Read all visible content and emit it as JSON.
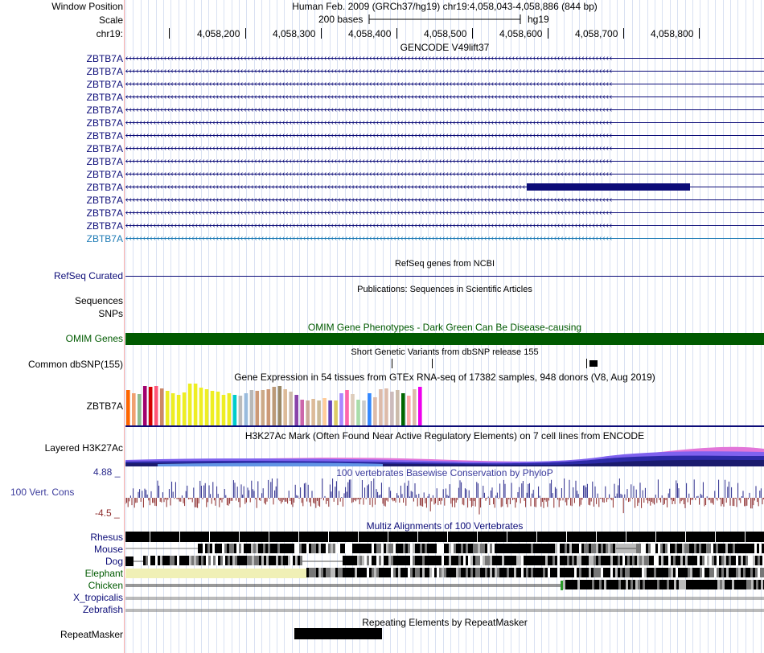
{
  "header": {
    "window_position_label": "Window Position",
    "scale_label": "Scale",
    "chrom_label": "chr19:",
    "assembly": "Human Feb. 2009 (GRCh37/hg19)   chr19:4,058,043-4,058,886 (844 bp)",
    "scale_text": "200 bases",
    "db": "hg19",
    "ruler_ticks": [
      "4,058,200",
      "4,058,300",
      "4,058,400",
      "4,058,500",
      "4,058,600",
      "4,058,700",
      "4,058,800"
    ]
  },
  "gencode": {
    "title": "GENCODE V49lift37",
    "rows": [
      {
        "label": "ZBTB7A"
      },
      {
        "label": "ZBTB7A"
      },
      {
        "label": "ZBTB7A"
      },
      {
        "label": "ZBTB7A"
      },
      {
        "label": "ZBTB7A"
      },
      {
        "label": "ZBTB7A"
      },
      {
        "label": "ZBTB7A"
      },
      {
        "label": "ZBTB7A"
      },
      {
        "label": "ZBTB7A"
      },
      {
        "label": "ZBTB7A"
      },
      {
        "label": "ZBTB7A"
      },
      {
        "label": "ZBTB7A"
      },
      {
        "label": "ZBTB7A"
      },
      {
        "label": "ZBTB7A"
      },
      {
        "label": "ZBTB7A"
      }
    ],
    "row_with_exon": 10,
    "colors": {
      "gene": "#0c0c78",
      "last_gene": "#1c7ab5"
    }
  },
  "refseq": {
    "title": "RefSeq genes from NCBI",
    "label": "RefSeq Curated",
    "color": "#0c0c78"
  },
  "publications": {
    "title": "Publications: Sequences in Scientific Articles",
    "labels": [
      "Sequences",
      "SNPs"
    ]
  },
  "omim": {
    "title": "OMIM Gene Phenotypes - Dark Green Can Be Disease-causing",
    "label": "OMIM Genes",
    "color": "#005a00"
  },
  "dbsnp": {
    "title": "Short Genetic Variants from dbSNP release 155",
    "label": "Common dbSNP(155)"
  },
  "gtex": {
    "title": "Gene Expression in 54 tissues from GTEx RNA-seq of 17382 samples, 948 donors (V8, Aug 2019)",
    "label": "ZBTB7A",
    "tissue_values": [
      0.88,
      0.8,
      0.78,
      0.98,
      0.96,
      0.98,
      0.92,
      0.86,
      0.8,
      0.76,
      0.82,
      1.04,
      1.04,
      0.94,
      0.9,
      0.86,
      0.84,
      0.76,
      0.8,
      0.76,
      0.74,
      0.8,
      0.88,
      0.86,
      0.88,
      0.9,
      0.96,
      0.98,
      0.9,
      0.84,
      0.76,
      0.64,
      0.62,
      0.66,
      0.62,
      0.68,
      0.62,
      0.62,
      0.8,
      0.88,
      0.78,
      0.64,
      0.62,
      0.8,
      0.7,
      0.9,
      0.92,
      0.84,
      0.88,
      0.8,
      0.74,
      0.9,
      0.96,
      0.74
    ],
    "tissue_colors": [
      "#ff6600",
      "#f0a070",
      "#8fbc8f",
      "#a0006e",
      "#d40000",
      "#ff5577",
      "#cc8866",
      "#eeee22",
      "#eeee22",
      "#eeee22",
      "#eeee22",
      "#eeee22",
      "#eeee22",
      "#eeee22",
      "#eeee22",
      "#eeee22",
      "#eeee22",
      "#eeee22",
      "#eeee22",
      "#00cccc",
      "#bbbbbb",
      "#99bbdd",
      "#b8b8b8",
      "#cc9977",
      "#ccaa88",
      "#cc9977",
      "#bb9977",
      "#998866",
      "#ddbb99",
      "#ccbbaa",
      "#8844aa",
      "#cc66aa",
      "#ccaa99",
      "#ddbb99",
      "#ccbb99",
      "#ffcc99",
      "#6644bb",
      "#ddcc66",
      "#aa88ff",
      "#ff66aa",
      "#ddccbb",
      "#aaddaa",
      "#cccccc",
      "#3388ff",
      "#ddbbaa",
      "#ddbbaa",
      "#ddbbaa",
      "#ccbbbb",
      "#ccbbaa",
      "#006600",
      "#ffaaaa",
      "#ddbbaa",
      "#ee00ee",
      "#ffffff"
    ]
  },
  "h3k27ac": {
    "title": "H3K27Ac Mark (Often Found Near Active Regulatory Elements) on 7 cell lines from ENCODE",
    "label": "Layered H3K27Ac"
  },
  "phylop": {
    "title": "100 vertebrates Basewise Conservation by PhyloP",
    "label": "100 Vert. Cons",
    "max_label": "4.88 _",
    "min_label": "-4.5 _",
    "range": [
      -4.5,
      4.88
    ],
    "colors": {
      "pos": "#2a2a8c",
      "neg": "#8c2a2a"
    }
  },
  "multiz": {
    "title": "Multiz Alignments of 100 Vertebrates",
    "species": [
      {
        "name": "Rhesus",
        "color": "#0c0c78"
      },
      {
        "name": "Mouse",
        "color": "#0c0c78"
      },
      {
        "name": "Dog",
        "color": "#0c0c78"
      },
      {
        "name": "Elephant",
        "color": "#005a00"
      },
      {
        "name": "Chicken",
        "color": "#005a00"
      },
      {
        "name": "X_tropicalis",
        "color": "#0c0c78"
      },
      {
        "name": "Zebrafish",
        "color": "#0c0c78"
      }
    ]
  },
  "repeatmasker": {
    "title": "Repeating Elements by RepeatMasker",
    "label": "RepeatMasker"
  }
}
